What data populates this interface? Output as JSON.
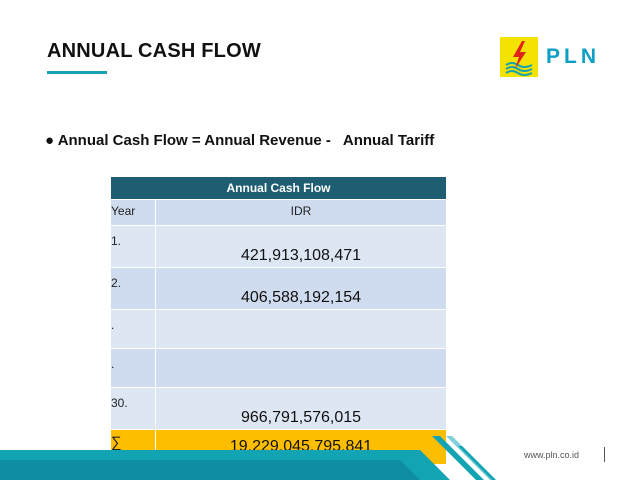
{
  "slide": {
    "title": "ANNUAL CASH FLOW",
    "logo": {
      "text": "PLN",
      "icon": "lightning-bolt-icon",
      "colors": {
        "box": "#f4e200",
        "text": "#0e9fc6",
        "bolt": "#e2231a"
      }
    },
    "bullet": {
      "marker": "●",
      "text": "Annual Cash Flow = Annual Revenue -   Annual Tariff"
    },
    "table": {
      "title": "Annual Cash Flow",
      "headers": [
        "Year",
        "IDR"
      ],
      "rows": [
        {
          "year": "1.",
          "idr": "421,913,108,471"
        },
        {
          "year": "2.",
          "idr": "406,588,192,154"
        },
        {
          "year": ".",
          "idr": ""
        },
        {
          "year": ".",
          "idr": ""
        },
        {
          "year": "30.",
          "idr": "966,791,576,015"
        }
      ],
      "total": {
        "symbol": "∑",
        "idr": "19,229,045,795,841"
      },
      "colors": {
        "header": "#1f5e72",
        "row_light": "#cfdcef",
        "row_dark": "#dde6f3",
        "total": "#fdbe00"
      }
    },
    "footer": {
      "url": "www.pln.co.id",
      "colors": {
        "teal": "#13a4b4",
        "dark": "#0d6f86"
      }
    }
  }
}
